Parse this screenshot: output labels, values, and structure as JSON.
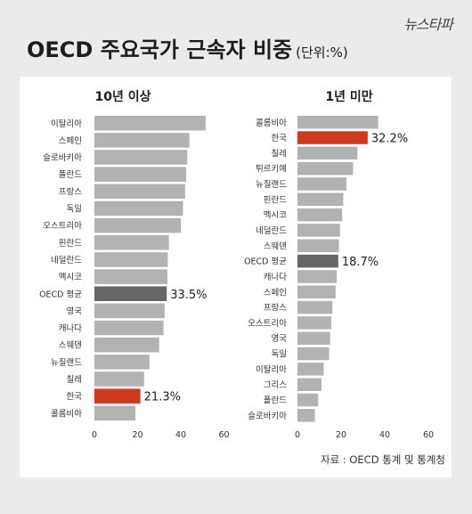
{
  "logo": "뉴스타파",
  "title": "OECD 주요국가 근속자 비중",
  "unit": "(단위:%)",
  "source": "자료 : OECD 통계 및 통계청",
  "colors": {
    "default": "#b2b2b4",
    "korea": "#cf3a1c",
    "oecd": "#666667"
  },
  "chart_data": [
    {
      "type": "bar",
      "orientation": "horizontal",
      "title": "10년 이상",
      "categories": [
        "이탈리아",
        "스페인",
        "슬로바키아",
        "폴란드",
        "프랑스",
        "독일",
        "오스트리아",
        "핀란드",
        "네덜란드",
        "멕시코",
        "OECD 평균",
        "영국",
        "캐나다",
        "스웨덴",
        "뉴질랜드",
        "칠레",
        "한국",
        "콜롬비아"
      ],
      "values": [
        51.5,
        44,
        43,
        42.5,
        42,
        41,
        40,
        34.5,
        34,
        33.8,
        33.5,
        32.5,
        32,
        30,
        25.5,
        23,
        21.3,
        19
      ],
      "data_labels": {
        "OECD 평균": "33.5%",
        "한국": "21.3%"
      },
      "highlight": {
        "한국": "korea",
        "OECD 평균": "oecd"
      },
      "xlim": [
        0,
        60
      ],
      "xticks": [
        0,
        20,
        40,
        60
      ],
      "grid": false
    },
    {
      "type": "bar",
      "orientation": "horizontal",
      "title": "1년 미만",
      "categories": [
        "콜롬비아",
        "한국",
        "칠레",
        "튀르키예",
        "뉴질랜드",
        "핀란드",
        "멕시코",
        "네덜란드",
        "스웨덴",
        "OECD 평균",
        "캐나다",
        "스페인",
        "프랑스",
        "오스트리아",
        "영국",
        "독일",
        "이탈리아",
        "그리스",
        "폴란드",
        "슬로바키아"
      ],
      "values": [
        37,
        32.2,
        27.5,
        25.5,
        22.5,
        21,
        20.5,
        19.5,
        19,
        18.7,
        18,
        17.5,
        16,
        15.5,
        15,
        14.5,
        12,
        11,
        9.5,
        8
      ],
      "data_labels": {
        "한국": "32.2%",
        "OECD 평균": "18.7%"
      },
      "highlight": {
        "한국": "korea",
        "OECD 평균": "oecd"
      },
      "xlim": [
        0,
        60
      ],
      "xticks": [
        0,
        20,
        40,
        60
      ],
      "grid": false
    }
  ]
}
